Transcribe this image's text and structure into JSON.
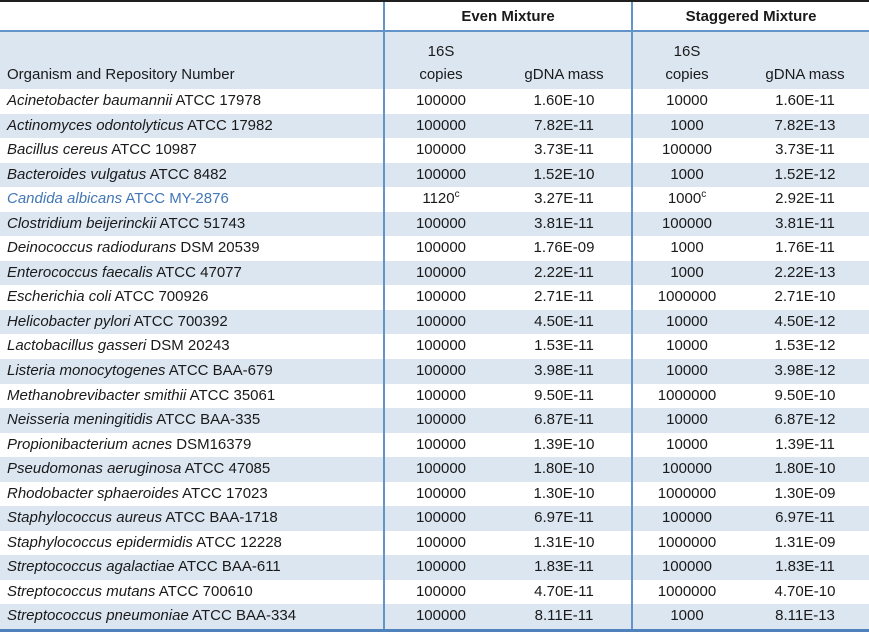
{
  "table": {
    "group_headers": {
      "even": "Even Mixture",
      "staggered": "Staggered Mixture"
    },
    "column_headers": {
      "organism": "Organism and Repository Number",
      "copies_line1": "16S",
      "copies_line2": "copies",
      "gdna": "gDNA mass"
    },
    "rows": [
      {
        "name": "Acinetobacter baumannii",
        "repo": "ATCC 17978",
        "even_16s": "100000",
        "even_16s_sup": "",
        "even_gdna": "1.60E-10",
        "stag_16s": "10000",
        "stag_16s_sup": "",
        "stag_gdna": "1.60E-11",
        "highlight": false
      },
      {
        "name": "Actinomyces odontolyticus",
        "repo": "ATCC 17982",
        "even_16s": "100000",
        "even_16s_sup": "",
        "even_gdna": "7.82E-11",
        "stag_16s": "1000",
        "stag_16s_sup": "",
        "stag_gdna": "7.82E-13",
        "highlight": false
      },
      {
        "name": "Bacillus cereus",
        "repo": "ATCC 10987",
        "even_16s": "100000",
        "even_16s_sup": "",
        "even_gdna": "3.73E-11",
        "stag_16s": "100000",
        "stag_16s_sup": "",
        "stag_gdna": "3.73E-11",
        "highlight": false
      },
      {
        "name": "Bacteroides vulgatus",
        "repo": "ATCC 8482",
        "even_16s": "100000",
        "even_16s_sup": "",
        "even_gdna": "1.52E-10",
        "stag_16s": "1000",
        "stag_16s_sup": "",
        "stag_gdna": "1.52E-12",
        "highlight": false
      },
      {
        "name": "Candida albicans",
        "repo": "ATCC MY-2876",
        "even_16s": "1120",
        "even_16s_sup": "c",
        "even_gdna": "3.27E-11",
        "stag_16s": "1000",
        "stag_16s_sup": "c",
        "stag_gdna": "2.92E-11",
        "highlight": true
      },
      {
        "name": "Clostridium beijerinckii",
        "repo": "ATCC 51743",
        "even_16s": "100000",
        "even_16s_sup": "",
        "even_gdna": "3.81E-11",
        "stag_16s": "100000",
        "stag_16s_sup": "",
        "stag_gdna": "3.81E-11",
        "highlight": false
      },
      {
        "name": "Deinococcus radiodurans",
        "repo": "DSM 20539",
        "even_16s": "100000",
        "even_16s_sup": "",
        "even_gdna": "1.76E-09",
        "stag_16s": "1000",
        "stag_16s_sup": "",
        "stag_gdna": "1.76E-11",
        "highlight": false
      },
      {
        "name": "Enterococcus faecalis",
        "repo": "ATCC 47077",
        "even_16s": "100000",
        "even_16s_sup": "",
        "even_gdna": "2.22E-11",
        "stag_16s": "1000",
        "stag_16s_sup": "",
        "stag_gdna": "2.22E-13",
        "highlight": false
      },
      {
        "name": "Escherichia coli",
        "repo": "ATCC 700926",
        "even_16s": "100000",
        "even_16s_sup": "",
        "even_gdna": "2.71E-11",
        "stag_16s": "1000000",
        "stag_16s_sup": "",
        "stag_gdna": "2.71E-10",
        "highlight": false
      },
      {
        "name": "Helicobacter pylori",
        "repo": "ATCC 700392",
        "even_16s": "100000",
        "even_16s_sup": "",
        "even_gdna": "4.50E-11",
        "stag_16s": "10000",
        "stag_16s_sup": "",
        "stag_gdna": "4.50E-12",
        "highlight": false
      },
      {
        "name": "Lactobacillus gasseri",
        "repo": "DSM 20243",
        "even_16s": "100000",
        "even_16s_sup": "",
        "even_gdna": "1.53E-11",
        "stag_16s": "10000",
        "stag_16s_sup": "",
        "stag_gdna": "1.53E-12",
        "highlight": false
      },
      {
        "name": "Listeria monocytogenes",
        "repo": "ATCC BAA-679",
        "even_16s": "100000",
        "even_16s_sup": "",
        "even_gdna": "3.98E-11",
        "stag_16s": "10000",
        "stag_16s_sup": "",
        "stag_gdna": "3.98E-12",
        "highlight": false
      },
      {
        "name": "Methanobrevibacter smithii",
        "repo": "ATCC 35061",
        "even_16s": "100000",
        "even_16s_sup": "",
        "even_gdna": "9.50E-11",
        "stag_16s": "1000000",
        "stag_16s_sup": "",
        "stag_gdna": "9.50E-10",
        "highlight": false
      },
      {
        "name": "Neisseria meningitidis",
        "repo": "ATCC BAA-335",
        "even_16s": "100000",
        "even_16s_sup": "",
        "even_gdna": "6.87E-11",
        "stag_16s": "10000",
        "stag_16s_sup": "",
        "stag_gdna": "6.87E-12",
        "highlight": false
      },
      {
        "name": "Propionibacterium acnes",
        "repo": "DSM16379",
        "even_16s": "100000",
        "even_16s_sup": "",
        "even_gdna": "1.39E-10",
        "stag_16s": "10000",
        "stag_16s_sup": "",
        "stag_gdna": "1.39E-11",
        "highlight": false
      },
      {
        "name": "Pseudomonas aeruginosa",
        "repo": "ATCC 47085",
        "even_16s": "100000",
        "even_16s_sup": "",
        "even_gdna": "1.80E-10",
        "stag_16s": "100000",
        "stag_16s_sup": "",
        "stag_gdna": "1.80E-10",
        "highlight": false
      },
      {
        "name": "Rhodobacter sphaeroides",
        "repo": "ATCC 17023",
        "even_16s": "100000",
        "even_16s_sup": "",
        "even_gdna": "1.30E-10",
        "stag_16s": "1000000",
        "stag_16s_sup": "",
        "stag_gdna": "1.30E-09",
        "highlight": false
      },
      {
        "name": "Staphylococcus aureus",
        "repo": "ATCC BAA-1718",
        "even_16s": "100000",
        "even_16s_sup": "",
        "even_gdna": "6.97E-11",
        "stag_16s": "100000",
        "stag_16s_sup": "",
        "stag_gdna": "6.97E-11",
        "highlight": false
      },
      {
        "name": "Staphylococcus epidermidis",
        "repo": "ATCC 12228",
        "even_16s": "100000",
        "even_16s_sup": "",
        "even_gdna": "1.31E-10",
        "stag_16s": "1000000",
        "stag_16s_sup": "",
        "stag_gdna": "1.31E-09",
        "highlight": false
      },
      {
        "name": "Streptococcus agalactiae",
        "repo": "ATCC BAA-611",
        "even_16s": "100000",
        "even_16s_sup": "",
        "even_gdna": "1.83E-11",
        "stag_16s": "100000",
        "stag_16s_sup": "",
        "stag_gdna": "1.83E-11",
        "highlight": false
      },
      {
        "name": "Streptococcus mutans",
        "repo": "ATCC 700610",
        "even_16s": "100000",
        "even_16s_sup": "",
        "even_gdna": "4.70E-11",
        "stag_16s": "1000000",
        "stag_16s_sup": "",
        "stag_gdna": "4.70E-10",
        "highlight": false
      },
      {
        "name": "Streptococcus pneumoniae",
        "repo": "ATCC BAA-334",
        "even_16s": "100000",
        "even_16s_sup": "",
        "even_gdna": "8.11E-11",
        "stag_16s": "1000",
        "stag_16s_sup": "",
        "stag_gdna": "8.11E-13",
        "highlight": false
      }
    ]
  },
  "colors": {
    "stripe_row": "#dce6f1",
    "blue_line": "#6394c9",
    "bottom_border": "#4f81bd",
    "top_border": "#1f1f1f",
    "highlight_text": "#4377b6"
  }
}
